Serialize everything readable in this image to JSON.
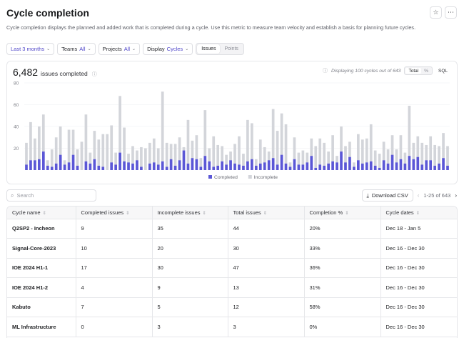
{
  "header": {
    "title": "Cycle completion",
    "description": "Cycle completion displays the planned and added work that is completed during a cycle. Use this metric to measure team velocity and establish a basis for planning future cycles."
  },
  "filters": {
    "range": "Last 3 months",
    "teams_label": "Teams",
    "teams_value": "All",
    "projects_label": "Projects",
    "projects_value": "All",
    "display_label": "Display",
    "display_value": "Cycles",
    "mode_issues": "Issues",
    "mode_points": "Points"
  },
  "summary": {
    "count": "6,482",
    "count_label": "issues completed",
    "displaying": "Displaying 100 cycles out of 643",
    "view_total": "Total",
    "view_percent": "%",
    "sql": "SQL"
  },
  "chart_data": {
    "type": "bar",
    "stacked": true,
    "ylim": [
      0,
      80
    ],
    "yticks": [
      20,
      40,
      60,
      80
    ],
    "grid": true,
    "legend": "bottom-center",
    "series": [
      {
        "name": "Completed",
        "color": "#5b57d6",
        "values": [
          5,
          9,
          9,
          10,
          17,
          4,
          3,
          6,
          14,
          5,
          7,
          14,
          4,
          0,
          8,
          6,
          10,
          4,
          3,
          0,
          7,
          5,
          16,
          8,
          7,
          6,
          9,
          3,
          0,
          6,
          7,
          5,
          8,
          3,
          10,
          4,
          9,
          18,
          6,
          11,
          10,
          3,
          13,
          8,
          3,
          4,
          8,
          5,
          9,
          6,
          5,
          4,
          8,
          10,
          4,
          6,
          7,
          9,
          11,
          5,
          14,
          6,
          3,
          10,
          5,
          5,
          7,
          13,
          2,
          5,
          4,
          6,
          8,
          7,
          17,
          7,
          12,
          3,
          9,
          6,
          7,
          8,
          4,
          2,
          9,
          6,
          14,
          7,
          10,
          6,
          13,
          10,
          12,
          5,
          9,
          9,
          4,
          6,
          11,
          4
        ]
      },
      {
        "name": "Incomplete",
        "color": "#d3d5da",
        "values": [
          20,
          35,
          20,
          30,
          34,
          5,
          16,
          24,
          26,
          4,
          30,
          23,
          15,
          26,
          43,
          10,
          26,
          24,
          30,
          33,
          34,
          11,
          52,
          31,
          8,
          16,
          9,
          18,
          20,
          19,
          22,
          15,
          64,
          22,
          14,
          20,
          21,
          3,
          40,
          16,
          22,
          8,
          42,
          12,
          28,
          19,
          14,
          9,
          8,
          18,
          26,
          11,
          38,
          33,
          6,
          22,
          14,
          8,
          45,
          31,
          38,
          36,
          4,
          20,
          11,
          13,
          9,
          16,
          20,
          24,
          21,
          11,
          24,
          6,
          23,
          15,
          14,
          4,
          24,
          22,
          22,
          34,
          14,
          13,
          17,
          13,
          18,
          12,
          22,
          10,
          46,
          15,
          19,
          20,
          14,
          22,
          19,
          16,
          23,
          18
        ]
      }
    ]
  },
  "search": {
    "placeholder": "Search"
  },
  "table_tools": {
    "csv": "Download CSV",
    "pager": "1-25 of 643"
  },
  "table": {
    "columns": [
      "Cycle name",
      "Completed issues",
      "Incomplete issues",
      "Total issues",
      "Completion %",
      "Cycle dates"
    ],
    "rows": [
      [
        "Q2SP2 - Incheon",
        "9",
        "35",
        "44",
        "20%",
        "Dec 18 - Jan 5"
      ],
      [
        "Signal-Core-2023",
        "10",
        "20",
        "30",
        "33%",
        "Dec 16 - Dec 30"
      ],
      [
        "IOE 2024 H1-1",
        "17",
        "30",
        "47",
        "36%",
        "Dec 16 - Dec 30"
      ],
      [
        "IOE 2024 H1-2",
        "4",
        "9",
        "13",
        "31%",
        "Dec 16 - Dec 30"
      ],
      [
        "Kabuto",
        "7",
        "5",
        "12",
        "58%",
        "Dec 16 - Dec 30"
      ],
      [
        "ML Infrastructure",
        "0",
        "3",
        "3",
        "0%",
        "Dec 16 - Dec 30"
      ]
    ]
  }
}
